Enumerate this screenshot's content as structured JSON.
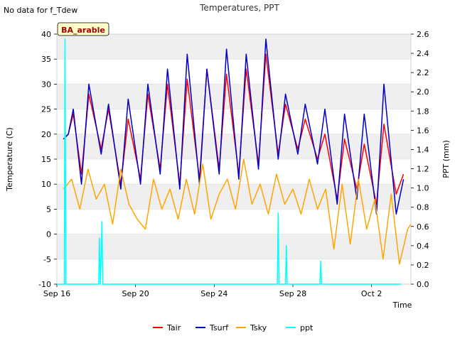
{
  "chart_data": {
    "type": "line",
    "title": "Temperatures, PPT",
    "note": "No data for f_Tdew",
    "site_label": "BA_arable",
    "xlabel": "Time",
    "ylabel": "Temperature (C)",
    "y2label": "PPT (mm)",
    "x_range": [
      "2023-09-16",
      "2023-10-04"
    ],
    "x_ticks": [
      {
        "date": "2023-09-16",
        "label": "Sep 16"
      },
      {
        "date": "2023-09-20",
        "label": "Sep 20"
      },
      {
        "date": "2023-09-24",
        "label": "Sep 24"
      },
      {
        "date": "2023-09-28",
        "label": "Sep 28"
      },
      {
        "date": "2023-10-02",
        "label": "Oct 2"
      }
    ],
    "ylim": [
      -10,
      40
    ],
    "y_ticks": [
      -10,
      -5,
      0,
      5,
      10,
      15,
      20,
      25,
      30,
      35,
      40
    ],
    "y2lim": [
      0,
      2.6
    ],
    "y2_ticks": [
      0.0,
      0.2,
      0.4,
      0.6,
      0.8,
      1.0,
      1.2,
      1.4,
      1.6,
      1.8,
      2.0,
      2.2,
      2.4,
      2.6
    ],
    "y2_tick_labels": [
      "0.0",
      "0.2",
      "0.4",
      "0.6",
      "0.8",
      "1.0",
      "1.2",
      "1.4",
      "1.6",
      "1.8",
      "2.0",
      "2.2",
      "2.4",
      "2.6"
    ],
    "grid": "horizontal bands",
    "legend_position": "bottom",
    "series": [
      {
        "name": "Tair",
        "color": "#ff0000",
        "axis": "left",
        "x": [
          "2023-09-16 08:00",
          "2023-09-16 14:00",
          "2023-09-16 20:00",
          "2023-09-17 06:00",
          "2023-09-17 15:00",
          "2023-09-18 06:00",
          "2023-09-18 15:00",
          "2023-09-19 06:00",
          "2023-09-19 15:00",
          "2023-09-20 06:00",
          "2023-09-20 15:00",
          "2023-09-21 06:00",
          "2023-09-21 15:00",
          "2023-09-22 06:00",
          "2023-09-22 15:00",
          "2023-09-23 06:00",
          "2023-09-23 15:00",
          "2023-09-24 06:00",
          "2023-09-24 15:00",
          "2023-09-25 06:00",
          "2023-09-25 15:00",
          "2023-09-26 06:00",
          "2023-09-26 15:00",
          "2023-09-27 06:00",
          "2023-09-27 15:00",
          "2023-09-28 06:00",
          "2023-09-28 15:00",
          "2023-09-29 06:00",
          "2023-09-29 15:00",
          "2023-09-30 06:00",
          "2023-09-30 15:00",
          "2023-10-01 06:00",
          "2023-10-01 15:00",
          "2023-10-02 06:00",
          "2023-10-02 15:00",
          "2023-10-03 06:00",
          "2023-10-03 15:00"
        ],
        "y": [
          19,
          20,
          24,
          12,
          28,
          17,
          25,
          10,
          23,
          11,
          28,
          13,
          30,
          10,
          31,
          11,
          33,
          13,
          32,
          12,
          33,
          14,
          36,
          16,
          26,
          17,
          23,
          15,
          20,
          7,
          19,
          9,
          18,
          6,
          22,
          8,
          12
        ]
      },
      {
        "name": "Tsurf",
        "color": "#0000cc",
        "axis": "left",
        "x": [
          "2023-09-16 08:00",
          "2023-09-16 14:00",
          "2023-09-16 20:00",
          "2023-09-17 06:00",
          "2023-09-17 15:00",
          "2023-09-18 06:00",
          "2023-09-18 15:00",
          "2023-09-19 06:00",
          "2023-09-19 15:00",
          "2023-09-20 06:00",
          "2023-09-20 15:00",
          "2023-09-21 06:00",
          "2023-09-21 15:00",
          "2023-09-22 06:00",
          "2023-09-22 15:00",
          "2023-09-23 06:00",
          "2023-09-23 15:00",
          "2023-09-24 06:00",
          "2023-09-24 15:00",
          "2023-09-25 06:00",
          "2023-09-25 15:00",
          "2023-09-26 06:00",
          "2023-09-26 15:00",
          "2023-09-27 06:00",
          "2023-09-27 15:00",
          "2023-09-28 06:00",
          "2023-09-28 15:00",
          "2023-09-29 06:00",
          "2023-09-29 15:00",
          "2023-09-30 06:00",
          "2023-09-30 15:00",
          "2023-10-01 06:00",
          "2023-10-01 15:00",
          "2023-10-02 06:00",
          "2023-10-02 15:00",
          "2023-10-03 06:00",
          "2023-10-03 15:00"
        ],
        "y": [
          19,
          20,
          25,
          10,
          30,
          16,
          26,
          9,
          27,
          10,
          30,
          12,
          33,
          9,
          36,
          10,
          33,
          12,
          37,
          11,
          36,
          13,
          39,
          15,
          28,
          16,
          26,
          14,
          25,
          6,
          24,
          7,
          24,
          4,
          30,
          4,
          11
        ]
      },
      {
        "name": "Tsky",
        "color": "#ffa500",
        "axis": "left",
        "x": [
          "2023-09-16 08:00",
          "2023-09-16 18:00",
          "2023-09-17 04:00",
          "2023-09-17 14:00",
          "2023-09-18 00:00",
          "2023-09-18 10:00",
          "2023-09-18 20:00",
          "2023-09-19 06:00",
          "2023-09-19 16:00",
          "2023-09-20 02:00",
          "2023-09-20 12:00",
          "2023-09-20 22:00",
          "2023-09-21 08:00",
          "2023-09-21 18:00",
          "2023-09-22 04:00",
          "2023-09-22 14:00",
          "2023-09-23 00:00",
          "2023-09-23 10:00",
          "2023-09-23 20:00",
          "2023-09-24 06:00",
          "2023-09-24 16:00",
          "2023-09-25 02:00",
          "2023-09-25 12:00",
          "2023-09-25 22:00",
          "2023-09-26 08:00",
          "2023-09-26 18:00",
          "2023-09-27 04:00",
          "2023-09-27 14:00",
          "2023-09-28 00:00",
          "2023-09-28 10:00",
          "2023-09-28 20:00",
          "2023-09-29 06:00",
          "2023-09-29 16:00",
          "2023-09-30 02:00",
          "2023-09-30 12:00",
          "2023-09-30 22:00",
          "2023-10-01 08:00",
          "2023-10-01 18:00",
          "2023-10-02 04:00",
          "2023-10-02 14:00",
          "2023-10-03 00:00",
          "2023-10-03 10:00",
          "2023-10-03 20:00",
          "2023-10-04 00:00"
        ],
        "y": [
          9,
          11,
          5,
          13,
          7,
          10,
          2,
          13,
          6,
          3,
          1,
          11,
          5,
          9,
          3,
          11,
          4,
          14,
          3,
          8,
          11,
          5,
          15,
          6,
          10,
          4,
          12,
          6,
          9,
          4,
          11,
          5,
          9,
          -3,
          10,
          -2,
          11,
          1,
          7,
          -5,
          8,
          -6,
          1,
          2
        ]
      },
      {
        "name": "ppt",
        "color": "#00ffff",
        "axis": "right",
        "x": [
          "2023-09-16 09:00",
          "2023-09-16 10:00",
          "2023-09-16 11:00",
          "2023-09-16 12:00",
          "2023-09-18 03:00",
          "2023-09-18 04:00",
          "2023-09-18 05:00",
          "2023-09-18 06:00",
          "2023-09-18 07:00",
          "2023-09-18 08:00",
          "2023-09-18 09:00",
          "2023-09-27 05:00",
          "2023-09-27 06:00",
          "2023-09-27 07:00",
          "2023-09-27 15:00",
          "2023-09-27 16:00",
          "2023-09-27 17:00",
          "2023-09-29 09:00",
          "2023-09-29 10:00",
          "2023-09-29 11:00"
        ],
        "y": [
          0,
          2.55,
          0,
          0,
          0,
          0.48,
          0,
          0.28,
          0.65,
          0,
          0,
          0,
          0.74,
          0,
          0,
          0.4,
          0,
          0,
          0.24,
          0
        ]
      }
    ]
  }
}
